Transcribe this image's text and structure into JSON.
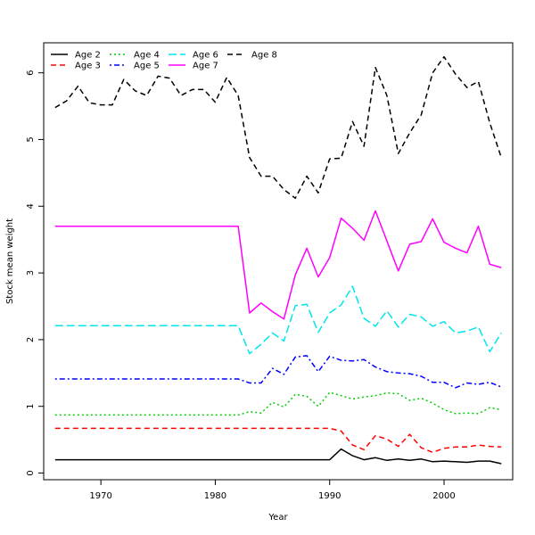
{
  "chart_data": {
    "type": "line",
    "title": "",
    "xlabel": "Year",
    "ylabel": "Stock mean weight",
    "xlim": [
      1965,
      2006
    ],
    "ylim": [
      -0.1,
      6.45
    ],
    "xticks": [
      1970,
      1980,
      1990,
      2000
    ],
    "yticks": [
      0,
      1,
      2,
      3,
      4,
      5,
      6
    ],
    "grid": false,
    "legend_position": "top-left",
    "x": [
      1966,
      1967,
      1968,
      1969,
      1970,
      1971,
      1972,
      1973,
      1974,
      1975,
      1976,
      1977,
      1978,
      1979,
      1980,
      1981,
      1982,
      1983,
      1984,
      1985,
      1986,
      1987,
      1988,
      1989,
      1990,
      1991,
      1992,
      1993,
      1994,
      1995,
      1996,
      1997,
      1998,
      1999,
      2000,
      2001,
      2002,
      2003,
      2004,
      2005
    ],
    "series": [
      {
        "name": "Age 2",
        "color": "#000000",
        "dash": "solid",
        "values": [
          0.2,
          0.2,
          0.2,
          0.2,
          0.2,
          0.2,
          0.2,
          0.2,
          0.2,
          0.2,
          0.2,
          0.2,
          0.2,
          0.2,
          0.2,
          0.2,
          0.2,
          0.2,
          0.2,
          0.2,
          0.2,
          0.2,
          0.2,
          0.2,
          0.2,
          0.36,
          0.26,
          0.2,
          0.23,
          0.19,
          0.21,
          0.19,
          0.21,
          0.17,
          0.18,
          0.17,
          0.16,
          0.18,
          0.18,
          0.14
        ]
      },
      {
        "name": "Age 3",
        "color": "#ff0000",
        "dash": "dashed",
        "values": [
          0.67,
          0.67,
          0.67,
          0.67,
          0.67,
          0.67,
          0.67,
          0.67,
          0.67,
          0.67,
          0.67,
          0.67,
          0.67,
          0.67,
          0.67,
          0.67,
          0.67,
          0.67,
          0.67,
          0.67,
          0.67,
          0.67,
          0.67,
          0.67,
          0.67,
          0.63,
          0.42,
          0.35,
          0.56,
          0.51,
          0.4,
          0.58,
          0.38,
          0.31,
          0.37,
          0.39,
          0.39,
          0.42,
          0.4,
          0.39
        ]
      },
      {
        "name": "Age 4",
        "color": "#00cd00",
        "dash": "dotted",
        "values": [
          0.87,
          0.87,
          0.87,
          0.87,
          0.87,
          0.87,
          0.87,
          0.87,
          0.87,
          0.87,
          0.87,
          0.87,
          0.87,
          0.87,
          0.87,
          0.87,
          0.87,
          0.92,
          0.9,
          1.06,
          0.99,
          1.18,
          1.15,
          1.0,
          1.21,
          1.16,
          1.11,
          1.14,
          1.16,
          1.2,
          1.19,
          1.09,
          1.12,
          1.05,
          0.95,
          0.89,
          0.9,
          0.89,
          0.98,
          0.95
        ]
      },
      {
        "name": "Age 5",
        "color": "#0000ff",
        "dash": "dotdash",
        "values": [
          1.41,
          1.41,
          1.41,
          1.41,
          1.41,
          1.41,
          1.41,
          1.41,
          1.41,
          1.41,
          1.41,
          1.41,
          1.41,
          1.41,
          1.41,
          1.41,
          1.41,
          1.35,
          1.35,
          1.57,
          1.48,
          1.74,
          1.76,
          1.52,
          1.75,
          1.69,
          1.68,
          1.7,
          1.59,
          1.52,
          1.5,
          1.49,
          1.45,
          1.36,
          1.36,
          1.28,
          1.35,
          1.33,
          1.36,
          1.29
        ]
      },
      {
        "name": "Age 6",
        "color": "#00e5ee",
        "dash": "longdash",
        "values": [
          2.21,
          2.21,
          2.21,
          2.21,
          2.21,
          2.21,
          2.21,
          2.21,
          2.21,
          2.21,
          2.21,
          2.21,
          2.21,
          2.21,
          2.21,
          2.21,
          2.21,
          1.79,
          1.93,
          2.1,
          1.98,
          2.51,
          2.53,
          2.11,
          2.4,
          2.52,
          2.8,
          2.32,
          2.2,
          2.43,
          2.19,
          2.38,
          2.34,
          2.2,
          2.27,
          2.1,
          2.13,
          2.19,
          1.82,
          2.1
        ]
      },
      {
        "name": "Age 7",
        "color": "#ff00ff",
        "dash": "solid",
        "values": [
          3.7,
          3.7,
          3.7,
          3.7,
          3.7,
          3.7,
          3.7,
          3.7,
          3.7,
          3.7,
          3.7,
          3.7,
          3.7,
          3.7,
          3.7,
          3.7,
          3.7,
          2.4,
          2.55,
          2.42,
          2.31,
          2.97,
          3.37,
          2.94,
          3.23,
          3.82,
          3.67,
          3.49,
          3.93,
          3.48,
          3.03,
          3.43,
          3.47,
          3.81,
          3.46,
          3.37,
          3.3,
          3.7,
          3.13,
          3.08
        ]
      },
      {
        "name": "Age 8",
        "color": "#000000",
        "dash": "dashed",
        "values": [
          5.48,
          5.58,
          5.8,
          5.55,
          5.52,
          5.52,
          5.9,
          5.73,
          5.66,
          5.95,
          5.92,
          5.66,
          5.75,
          5.75,
          5.56,
          5.93,
          5.66,
          4.73,
          4.45,
          4.45,
          4.25,
          4.12,
          4.45,
          4.2,
          4.71,
          4.72,
          5.27,
          4.9,
          6.08,
          5.66,
          4.79,
          5.1,
          5.37,
          6.0,
          6.24,
          5.98,
          5.78,
          5.87,
          5.25,
          4.73
        ]
      }
    ]
  }
}
